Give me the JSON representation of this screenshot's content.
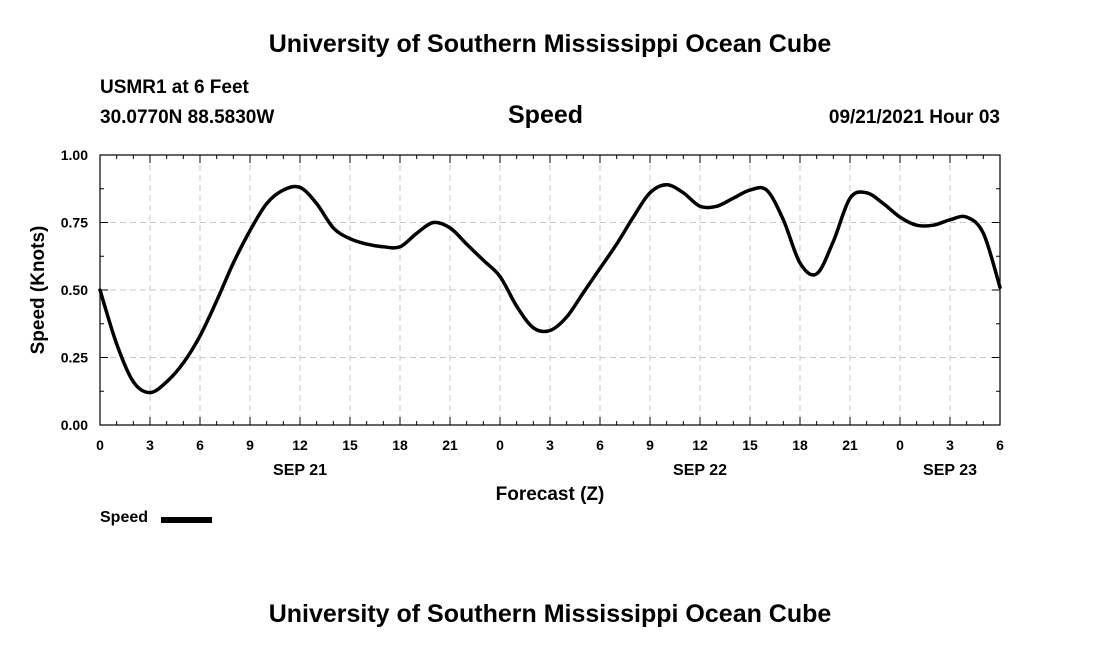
{
  "title_top": "University of Southern Mississippi Ocean Cube",
  "title_bottom": "University of Southern Mississippi Ocean Cube",
  "station": "USMR1 at 6 Feet",
  "location": "30.0770N  88.5830W",
  "chart_heading": "Speed",
  "issued": "09/21/2021 Hour 03",
  "legend_label": "Speed",
  "chart_data": {
    "type": "line",
    "title": "Speed",
    "xlabel": "Forecast (Z)",
    "ylabel": "Speed (Knots)",
    "x_unit": "hours since 2021-09-21 00Z",
    "xlim": [
      0,
      54
    ],
    "ylim": [
      0,
      1.0
    ],
    "yticks": [
      "0.00",
      "0.25",
      "0.50",
      "0.75",
      "1.00"
    ],
    "xticks": [
      "0",
      "3",
      "6",
      "9",
      "12",
      "15",
      "18",
      "21",
      "0",
      "3",
      "6",
      "9",
      "12",
      "15",
      "18",
      "21",
      "0",
      "3",
      "6"
    ],
    "date_labels": [
      {
        "label": "SEP 21",
        "hour": 12
      },
      {
        "label": "SEP 22",
        "hour": 36
      },
      {
        "label": "SEP 23",
        "hour": 51
      }
    ],
    "grid": true,
    "series": [
      {
        "name": "Speed",
        "color": "#000000",
        "x": [
          0,
          1,
          2,
          3,
          4,
          5,
          6,
          7,
          8,
          9,
          10,
          11,
          12,
          13,
          14,
          15,
          16,
          17,
          18,
          19,
          20,
          21,
          22,
          23,
          24,
          25,
          26,
          27,
          28,
          29,
          30,
          31,
          32,
          33,
          34,
          35,
          36,
          37,
          38,
          39,
          40,
          41,
          42,
          43,
          44,
          45,
          46,
          47,
          48,
          49,
          50,
          51,
          52,
          53,
          54
        ],
        "values": [
          0.5,
          0.3,
          0.16,
          0.12,
          0.16,
          0.23,
          0.33,
          0.46,
          0.6,
          0.72,
          0.82,
          0.87,
          0.88,
          0.82,
          0.73,
          0.69,
          0.67,
          0.66,
          0.66,
          0.71,
          0.75,
          0.73,
          0.67,
          0.61,
          0.55,
          0.44,
          0.36,
          0.35,
          0.4,
          0.49,
          0.58,
          0.67,
          0.77,
          0.86,
          0.89,
          0.86,
          0.81,
          0.81,
          0.84,
          0.87,
          0.87,
          0.76,
          0.6,
          0.56,
          0.68,
          0.84,
          0.86,
          0.82,
          0.77,
          0.74,
          0.74,
          0.76,
          0.77,
          0.71,
          0.51
        ]
      }
    ]
  }
}
